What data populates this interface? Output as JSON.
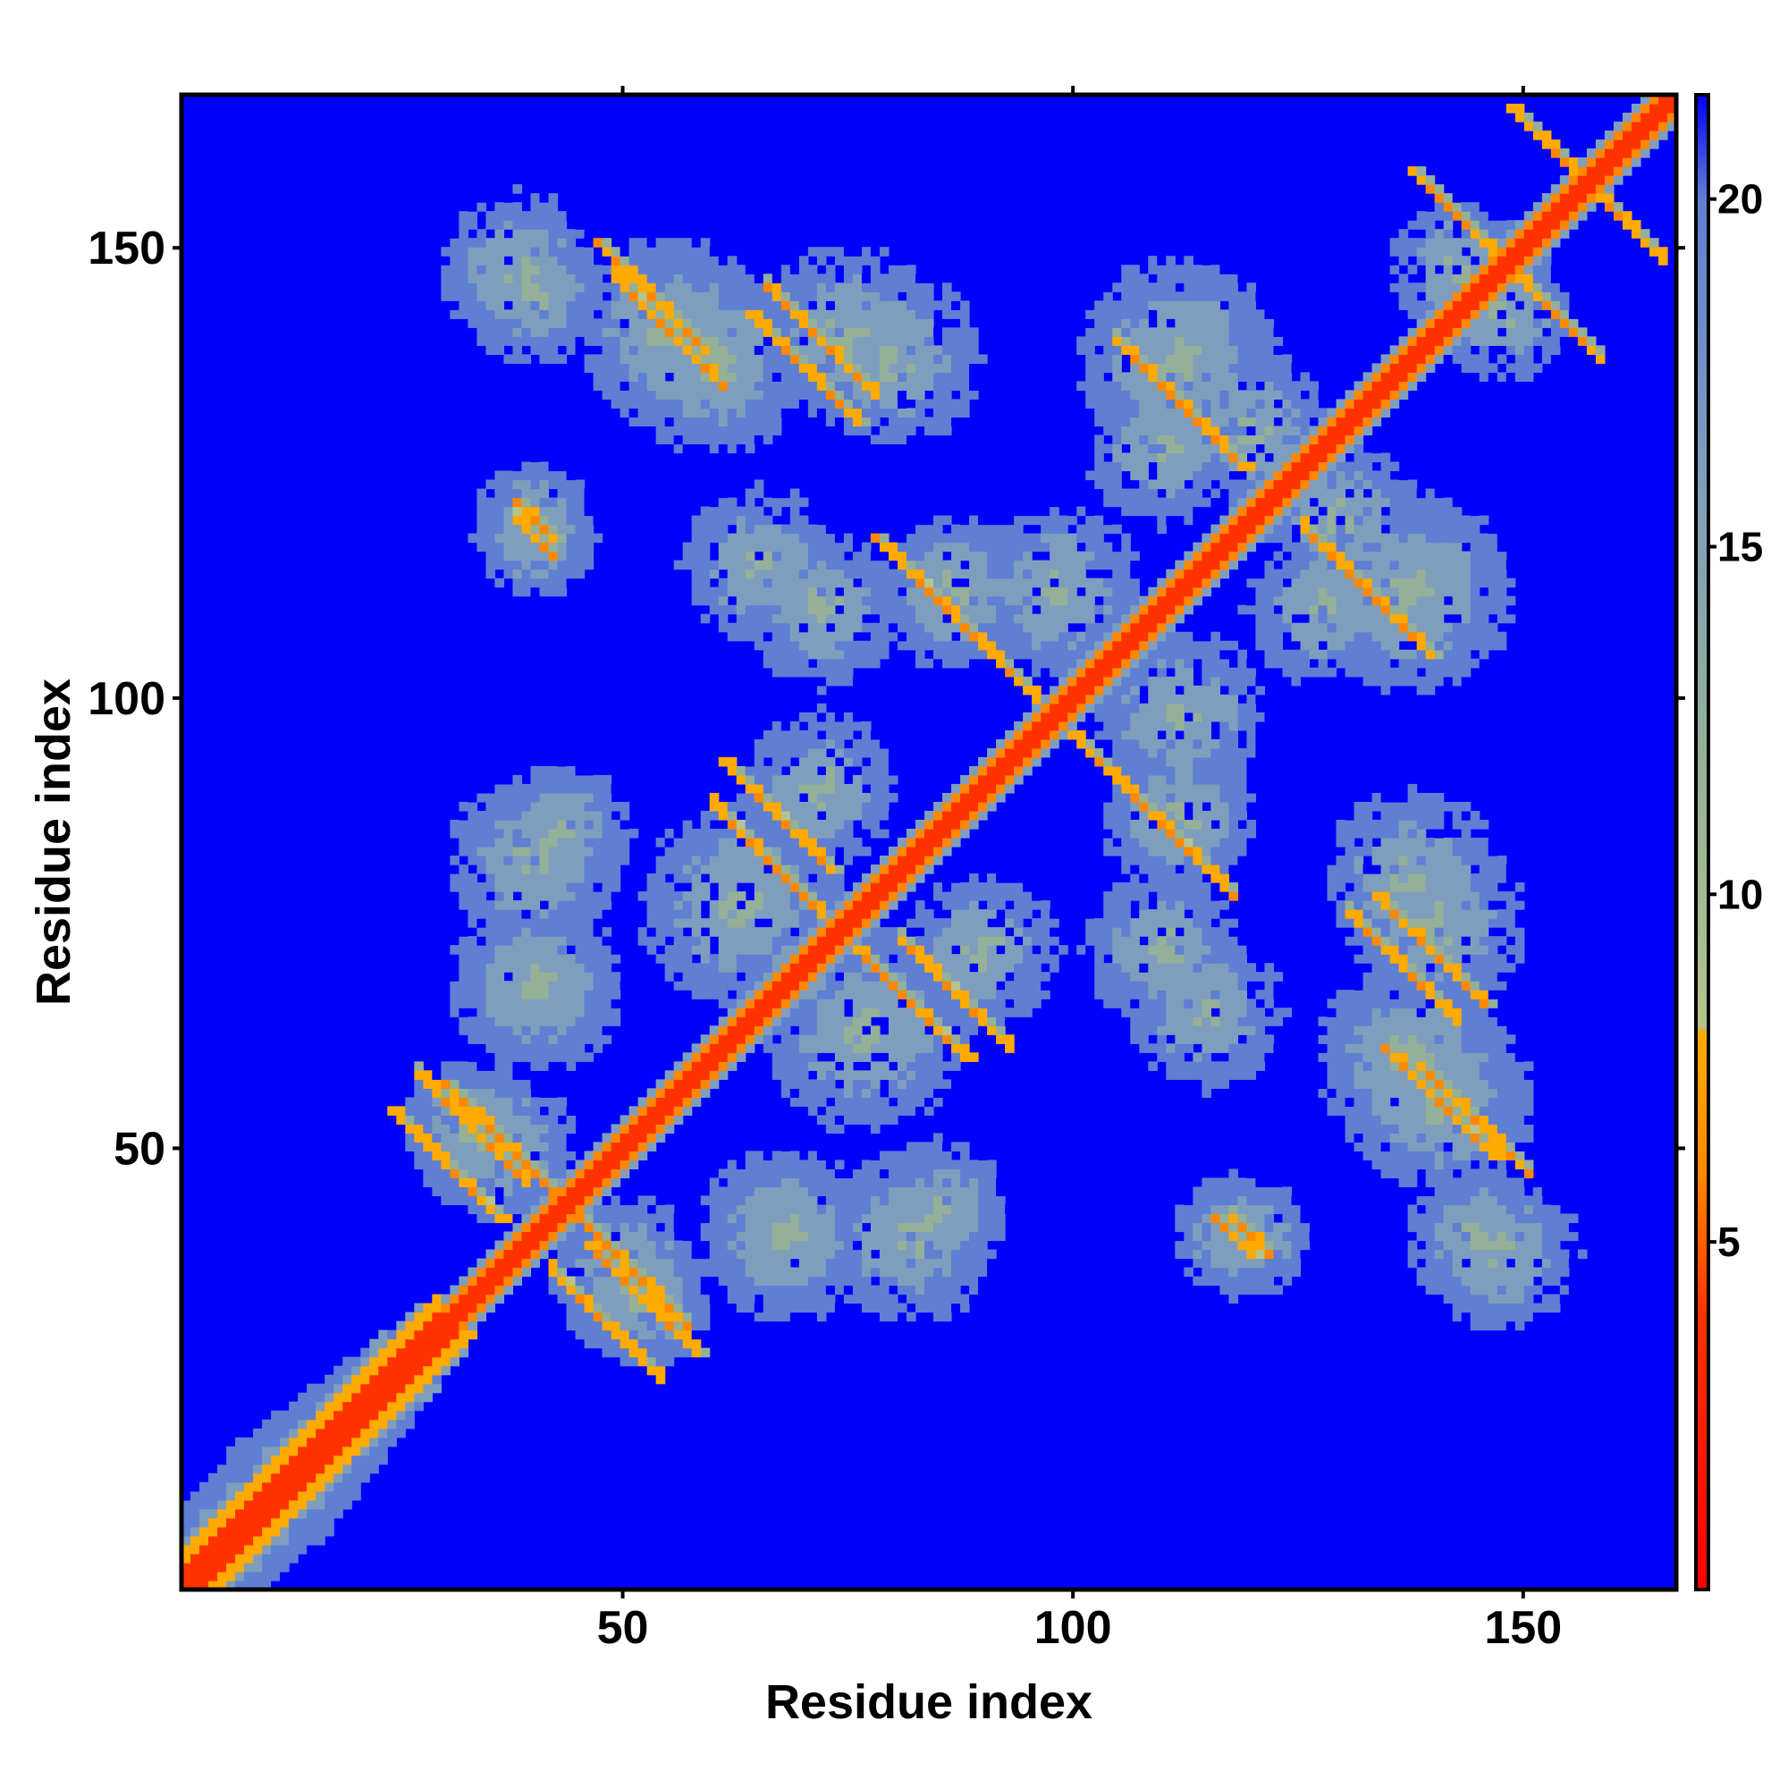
{
  "chart_data": {
    "type": "heatmap",
    "xlabel": "Residue index",
    "ylabel": "Residue index",
    "xlim": [
      1,
      167
    ],
    "ylim": [
      1,
      167
    ],
    "x_ticks": [
      50,
      100,
      150
    ],
    "y_ticks": [
      50,
      100,
      150
    ],
    "x_tick_labels": [
      "50",
      "100",
      "150"
    ],
    "y_tick_labels": [
      "50",
      "100",
      "150"
    ],
    "colorbar": {
      "range": [
        0,
        21.5
      ],
      "ticks": [
        5,
        10,
        15,
        20
      ],
      "tick_labels": [
        "5",
        "10",
        "15",
        "20"
      ],
      "stops": [
        {
          "value": 0,
          "color": "#ff0000"
        },
        {
          "value": 4,
          "color": "#ff3300"
        },
        {
          "value": 6,
          "color": "#ff8800"
        },
        {
          "value": 8,
          "color": "#ffaa00"
        },
        {
          "value": 8.1,
          "color": "#b4c48c"
        },
        {
          "value": 12,
          "color": "#94b098"
        },
        {
          "value": 16,
          "color": "#7f9ebd"
        },
        {
          "value": 20,
          "color": "#5f7fd2"
        },
        {
          "value": 21.5,
          "color": "#0000ff"
        }
      ]
    },
    "background_color": "#0000ff",
    "diagonal": {
      "from": 1,
      "to": 167
    },
    "contact_features": [
      {
        "i": 36,
        "j": 51,
        "strength": 0.95,
        "type": "anti"
      },
      {
        "i": 30,
        "j": 48,
        "strength": 0.85,
        "type": "anti"
      },
      {
        "i": 52,
        "j": 33,
        "strength": 0.8,
        "type": "anti"
      },
      {
        "i": 67,
        "j": 87,
        "strength": 0.9,
        "type": "anti"
      },
      {
        "i": 82,
        "j": 66,
        "strength": 0.9,
        "type": "anti"
      },
      {
        "i": 84,
        "j": 112,
        "strength": 0.9,
        "type": "anti"
      },
      {
        "i": 106,
        "j": 90,
        "strength": 0.9,
        "type": "anti"
      },
      {
        "i": 53,
        "j": 145,
        "strength": 0.9,
        "type": "anti"
      },
      {
        "i": 70,
        "j": 137,
        "strength": 0.8,
        "type": "anti"
      },
      {
        "i": 40,
        "j": 120,
        "strength": 0.7,
        "type": "point"
      },
      {
        "i": 141,
        "j": 55,
        "strength": 0.85,
        "type": "anti"
      },
      {
        "i": 140,
        "j": 72,
        "strength": 0.7,
        "type": "anti"
      },
      {
        "i": 113,
        "j": 132,
        "strength": 0.7,
        "type": "anti"
      },
      {
        "i": 134,
        "j": 111,
        "strength": 0.7,
        "type": "anti"
      },
      {
        "i": 118,
        "j": 40,
        "strength": 0.6,
        "type": "point"
      },
      {
        "i": 155,
        "j": 160,
        "strength": 0.8,
        "type": "anti"
      },
      {
        "i": 144,
        "j": 153,
        "strength": 0.8,
        "type": "anti"
      }
    ],
    "clusters": [
      {
        "i": 38,
        "j": 148,
        "r": 9
      },
      {
        "i": 60,
        "j": 138,
        "r": 11
      },
      {
        "i": 80,
        "j": 138,
        "r": 10
      },
      {
        "i": 40,
        "j": 120,
        "r": 7
      },
      {
        "i": 65,
        "j": 115,
        "r": 9
      },
      {
        "i": 87,
        "j": 112,
        "r": 9
      },
      {
        "i": 112,
        "j": 138,
        "r": 12
      },
      {
        "i": 130,
        "j": 120,
        "r": 9
      },
      {
        "i": 143,
        "j": 148,
        "r": 8
      },
      {
        "i": 40,
        "j": 82,
        "r": 10
      },
      {
        "i": 40,
        "j": 68,
        "r": 10
      },
      {
        "i": 63,
        "j": 77,
        "r": 12
      },
      {
        "i": 90,
        "j": 72,
        "r": 9
      },
      {
        "i": 33,
        "j": 52,
        "r": 8
      },
      {
        "i": 50,
        "j": 36,
        "r": 9
      },
      {
        "i": 68,
        "j": 40,
        "r": 9
      },
      {
        "i": 85,
        "j": 43,
        "r": 8
      },
      {
        "i": 110,
        "j": 72,
        "r": 9
      },
      {
        "i": 118,
        "j": 40,
        "r": 7
      },
      {
        "i": 141,
        "j": 75,
        "r": 10
      },
      {
        "i": 141,
        "j": 55,
        "r": 11
      },
      {
        "i": 145,
        "j": 40,
        "r": 8
      },
      {
        "i": 112,
        "j": 98,
        "r": 10
      },
      {
        "i": 128,
        "j": 110,
        "r": 9
      }
    ]
  }
}
